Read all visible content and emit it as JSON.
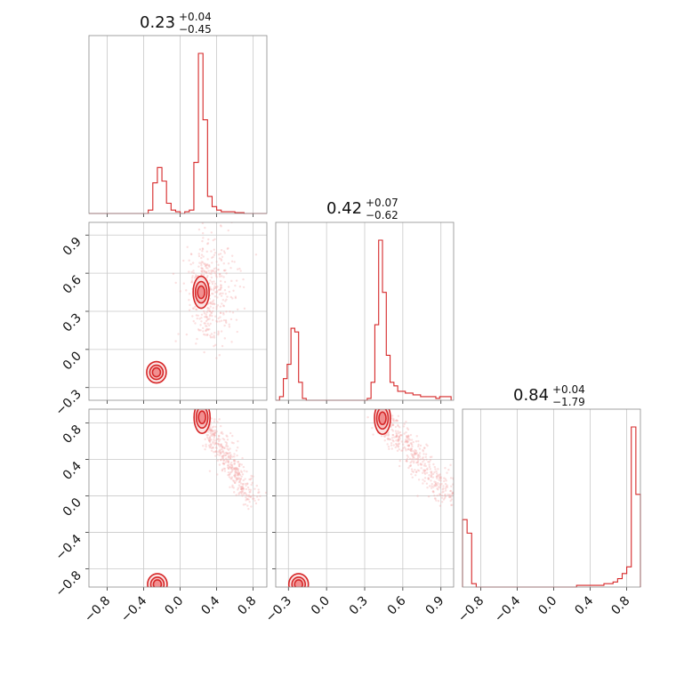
{
  "chart_data": {
    "type": "corner",
    "color": "#d62728",
    "variables": [
      {
        "median": "0.23",
        "plus": "+0.04",
        "minus": "−0.45",
        "range": [
          -1.0,
          0.95
        ]
      },
      {
        "median": "0.42",
        "plus": "+0.07",
        "minus": "−0.62",
        "range": [
          -0.4,
          1.0
        ]
      },
      {
        "median": "0.84",
        "plus": "+0.04",
        "minus": "−1.79",
        "range": [
          -1.0,
          0.95
        ]
      }
    ],
    "ticks": {
      "var0_x": [
        "−0.8",
        "−0.4",
        "0.0",
        "0.4",
        "0.8"
      ],
      "var1_x": [
        "−0.3",
        "0.0",
        "0.3",
        "0.6",
        "0.9"
      ],
      "var2_x": [
        "−0.8",
        "−0.4",
        "0.0",
        "0.4",
        "0.8"
      ],
      "var1_y": [
        "0.9",
        "0.6",
        "0.3",
        "0.0",
        "−0.3"
      ],
      "var2_y": [
        "0.8",
        "0.4",
        "0.0",
        "−0.4",
        "−0.8"
      ]
    },
    "tick_values": {
      "var0": [
        -0.8,
        -0.4,
        0.0,
        0.4,
        0.8
      ],
      "var1": [
        -0.3,
        0.0,
        0.3,
        0.6,
        0.9
      ],
      "var2": [
        -0.8,
        -0.4,
        0.0,
        0.4,
        0.8
      ]
    },
    "hist_var0": {
      "edges": [
        -1.0,
        -0.95,
        -0.9,
        -0.85,
        -0.8,
        -0.75,
        -0.7,
        -0.65,
        -0.6,
        -0.55,
        -0.5,
        -0.45,
        -0.4,
        -0.35,
        -0.3,
        -0.25,
        -0.2,
        -0.15,
        -0.1,
        -0.05,
        0.0,
        0.05,
        0.1,
        0.15,
        0.2,
        0.25,
        0.3,
        0.35,
        0.4,
        0.45,
        0.5,
        0.55,
        0.6,
        0.65,
        0.7,
        0.75,
        0.8,
        0.85,
        0.9,
        0.95
      ],
      "values": [
        0,
        0,
        0,
        0,
        0,
        0,
        0,
        0,
        0,
        0,
        0,
        0,
        0,
        0.02,
        0.18,
        0.27,
        0.19,
        0.06,
        0.02,
        0.01,
        0.0,
        0.01,
        0.02,
        0.3,
        0.94,
        0.55,
        0.1,
        0.04,
        0.02,
        0.01,
        0.01,
        0.01,
        0.005,
        0.005,
        0,
        0,
        0,
        0,
        0
      ]
    },
    "hist_var1": {
      "edges": [
        -0.4,
        -0.37,
        -0.34,
        -0.31,
        -0.28,
        -0.25,
        -0.22,
        -0.19,
        -0.16,
        -0.13,
        -0.1,
        -0.07,
        -0.04,
        -0.01,
        0.02,
        0.05,
        0.08,
        0.11,
        0.14,
        0.17,
        0.2,
        0.23,
        0.26,
        0.29,
        0.32,
        0.35,
        0.38,
        0.41,
        0.44,
        0.47,
        0.5,
        0.53,
        0.56,
        0.59,
        0.62,
        0.65,
        0.68,
        0.71,
        0.74,
        0.77,
        0.8,
        0.83,
        0.86,
        0.89,
        0.92,
        0.95,
        0.98
      ],
      "values": [
        0,
        0.02,
        0.12,
        0.2,
        0.4,
        0.38,
        0.1,
        0.01,
        0,
        0,
        0,
        0,
        0,
        0,
        0,
        0,
        0,
        0,
        0,
        0,
        0,
        0,
        0,
        0,
        0.01,
        0.1,
        0.42,
        0.89,
        0.6,
        0.25,
        0.1,
        0.08,
        0.05,
        0.05,
        0.04,
        0.04,
        0.03,
        0.03,
        0.02,
        0.02,
        0.02,
        0.02,
        0.01,
        0.02,
        0.02,
        0.02
      ]
    },
    "hist_var2": {
      "edges": [
        -1.0,
        -0.95,
        -0.9,
        -0.85,
        -0.8,
        -0.75,
        -0.7,
        -0.65,
        -0.6,
        -0.55,
        -0.5,
        -0.45,
        -0.4,
        -0.35,
        -0.3,
        -0.25,
        -0.2,
        -0.15,
        -0.1,
        -0.05,
        0.0,
        0.05,
        0.1,
        0.15,
        0.2,
        0.25,
        0.3,
        0.35,
        0.4,
        0.45,
        0.5,
        0.55,
        0.6,
        0.65,
        0.7,
        0.75,
        0.8,
        0.85,
        0.9,
        0.95
      ],
      "values": [
        0.4,
        0.32,
        0.02,
        0.0,
        0,
        0,
        0,
        0,
        0,
        0,
        0,
        0,
        0,
        0,
        0,
        0,
        0,
        0,
        0,
        0,
        0,
        0,
        0,
        0,
        0,
        0.01,
        0.01,
        0.01,
        0.01,
        0.01,
        0.01,
        0.02,
        0.02,
        0.03,
        0.05,
        0.08,
        0.12,
        0.95,
        0.55
      ]
    },
    "modes_2d": {
      "var0_var1": [
        {
          "x": 0.23,
          "y": 0.45
        },
        {
          "x": -0.26,
          "y": -0.18
        }
      ],
      "var0_var2": [
        {
          "x": 0.24,
          "y": 0.86
        },
        {
          "x": -0.25,
          "y": -0.97
        }
      ],
      "var1_var2": [
        {
          "x": 0.44,
          "y": 0.85
        },
        {
          "x": -0.22,
          "y": -0.97
        }
      ]
    }
  }
}
